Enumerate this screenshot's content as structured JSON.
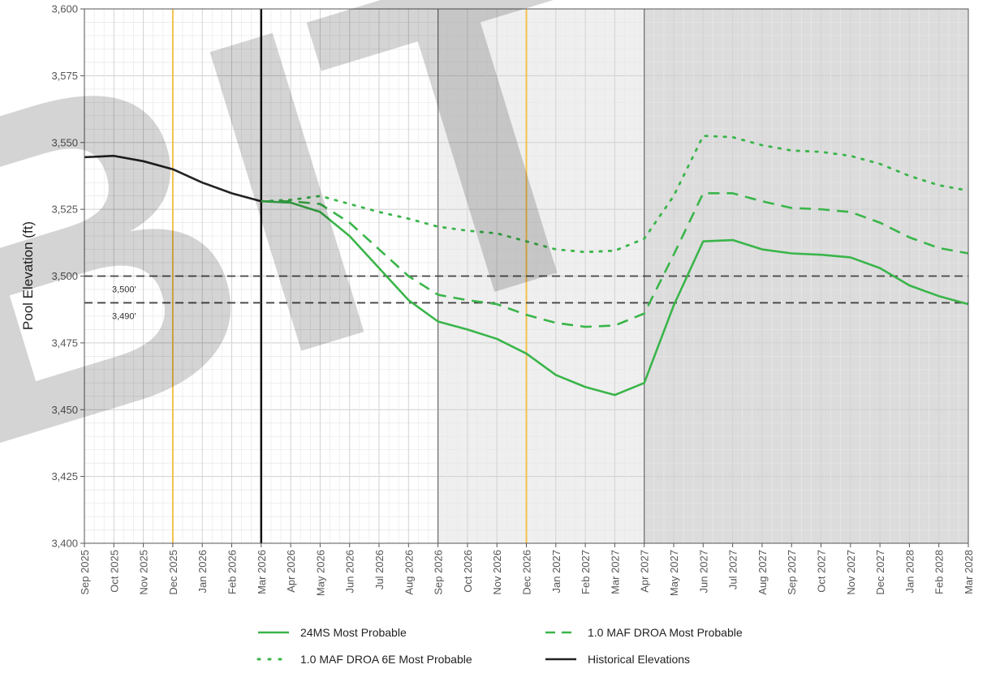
{
  "chart_data": {
    "type": "line",
    "ylabel": "Pool Elevation (ft)",
    "ylim": [
      3400,
      3600
    ],
    "y_ticks": [
      3400,
      3425,
      3450,
      3475,
      3500,
      3525,
      3550,
      3575,
      3600
    ],
    "y_tick_labels": [
      "3,400",
      "3,425",
      "3,450",
      "3,475",
      "3,500",
      "3,525",
      "3,550",
      "3,575",
      "3,600"
    ],
    "x": [
      "Sep 2025",
      "Oct 2025",
      "Nov 2025",
      "Dec 2025",
      "Jan 2026",
      "Feb 2026",
      "Mar 2026",
      "Apr 2026",
      "May 2026",
      "Jun 2026",
      "Jul 2026",
      "Aug 2026",
      "Sep 2026",
      "Oct 2026",
      "Nov 2026",
      "Dec 2026",
      "Jan 2027",
      "Feb 2027",
      "Mar 2027",
      "Apr 2027",
      "May 2027",
      "Jun 2027",
      "Jul 2027",
      "Aug 2027",
      "Sep 2027",
      "Oct 2027",
      "Nov 2027",
      "Dec 2027",
      "Jan 2028",
      "Feb 2028",
      "Mar 2028"
    ],
    "grid": true,
    "legend_position": "bottom",
    "series": [
      {
        "name": "24MS Most Probable",
        "style": "solid",
        "color": "#3ab54a",
        "values": [
          null,
          null,
          null,
          null,
          null,
          null,
          3528,
          3527.5,
          3524,
          3515,
          3503,
          3491,
          3483,
          3480,
          3476.5,
          3471,
          3463,
          3458.5,
          3455.5,
          3460,
          3489,
          3513,
          3513.5,
          3510,
          3508.5,
          3508,
          3507,
          3503,
          3496.5,
          3492.5,
          3489.5
        ]
      },
      {
        "name": "1.0 MAF DROA Most Probable",
        "style": "dashed",
        "color": "#3ab54a",
        "values": [
          null,
          null,
          null,
          null,
          null,
          null,
          3528,
          3528,
          3527,
          3520,
          3510,
          3500,
          3493,
          3491,
          3489.5,
          3485.5,
          3482.5,
          3481,
          3481.5,
          3486,
          3508,
          3531,
          3531,
          3528,
          3525.5,
          3525,
          3524,
          3520,
          3514.5,
          3510.5,
          3508.5
        ]
      },
      {
        "name": "1.0 MAF DROA 6E Most Probable",
        "style": "dotted",
        "color": "#3ab54a",
        "values": [
          null,
          null,
          null,
          null,
          null,
          null,
          3528,
          3528.5,
          3530,
          3527,
          3524,
          3521.5,
          3518.5,
          3517,
          3516,
          3513,
          3510,
          3509,
          3509.5,
          3514,
          3530,
          3552.5,
          3552,
          3549,
          3547,
          3546.5,
          3545,
          3542,
          3537.5,
          3534,
          3532
        ]
      },
      {
        "name": "Historical Elevations",
        "style": "solid",
        "color": "#222222",
        "values": [
          3544.5,
          3545,
          3543,
          3540,
          3535,
          3531,
          3528,
          null,
          null,
          null,
          null,
          null,
          null,
          null,
          null,
          null,
          null,
          null,
          null,
          null,
          null,
          null,
          null,
          null,
          null,
          null,
          null,
          null,
          null,
          null,
          null
        ]
      }
    ],
    "reference_lines": [
      {
        "y": 3500,
        "label": "3,500'"
      },
      {
        "y": 3490,
        "label": "3,490'"
      }
    ],
    "vertical_markers": [
      {
        "x": "Dec 2025",
        "color": "#f2c14e",
        "width": 2
      },
      {
        "x": "Mar 2026",
        "color": "#111111",
        "width": 2.5
      },
      {
        "x": "Sep 2026",
        "color": "#6a6a6a",
        "width": 1.2
      },
      {
        "x": "Dec 2026",
        "color": "#f2c14e",
        "width": 2
      },
      {
        "x": "Apr 2027",
        "color": "#6a6a6a",
        "width": 1.2
      }
    ],
    "shaded_regions": [
      {
        "from": "Sep 2026",
        "to": "Apr 2027",
        "color": "#efefef"
      },
      {
        "from": "Apr 2027",
        "to": "Mar 2028",
        "color": "#dcdcdc"
      }
    ]
  },
  "watermark": {
    "text": "BIT"
  }
}
